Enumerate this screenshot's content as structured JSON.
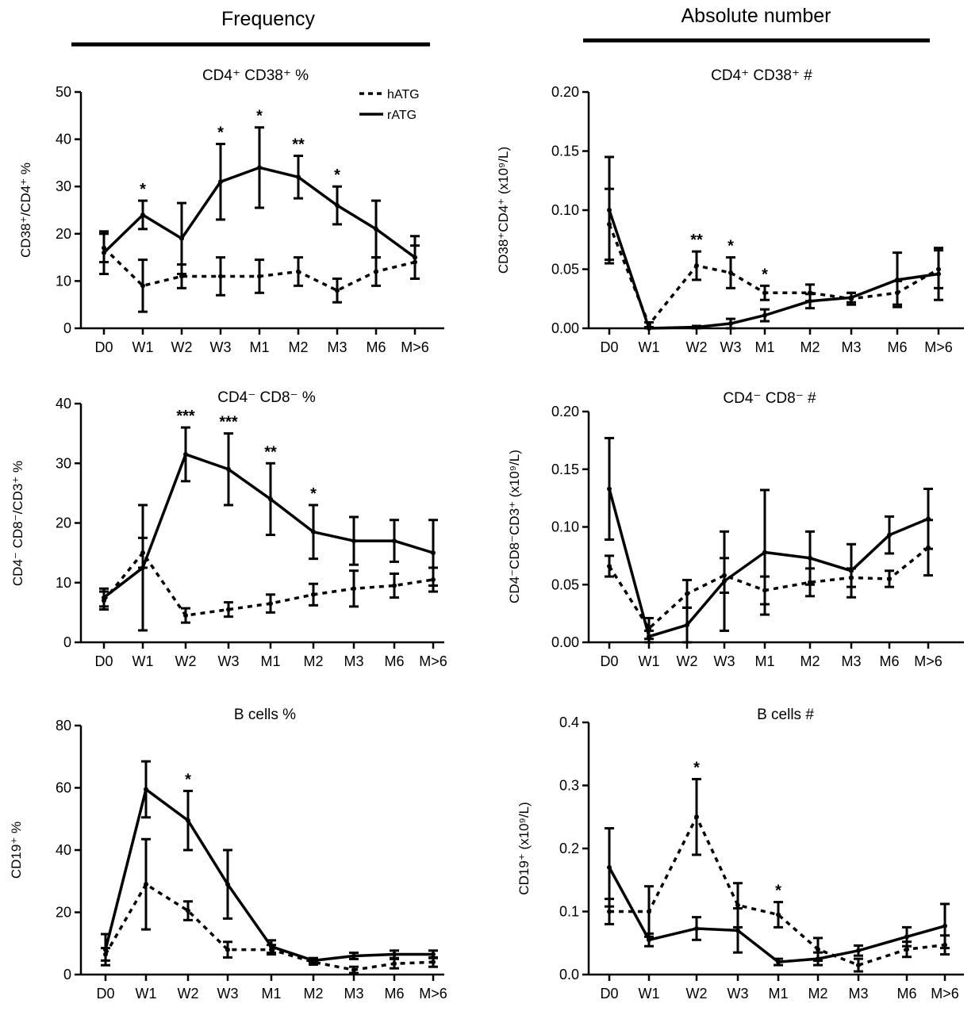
{
  "headers": {
    "left": "Frequency",
    "right": "Absolute number"
  },
  "legend": {
    "dashed": "hATG",
    "solid": "rATG"
  },
  "colors": {
    "line": "#000000",
    "background": "#ffffff"
  },
  "chart_data": [
    {
      "type": "line",
      "id": "cd4-cd38-pct",
      "title": "CD4⁺ CD38⁺ %",
      "ylabel": "CD38⁺/CD4⁺ %",
      "xlabel": "",
      "categories": [
        "D0",
        "W1",
        "W2",
        "W3",
        "M1",
        "M2",
        "M3",
        "M6",
        "M>6"
      ],
      "ylim": [
        0,
        50
      ],
      "yticks": [
        0,
        10,
        20,
        30,
        40,
        50
      ],
      "ytick_labels": [
        "0",
        "10",
        "20",
        "30",
        "40",
        "50"
      ],
      "series": [
        {
          "name": "hATG",
          "style": "dashed",
          "values": [
            17,
            9,
            11,
            11,
            11,
            12,
            8,
            12,
            14
          ],
          "errors": [
            3,
            5.5,
            2.5,
            4,
            3.5,
            3,
            2.5,
            3,
            3.5
          ]
        },
        {
          "name": "rATG",
          "style": "solid",
          "values": [
            16,
            24,
            19,
            31,
            34,
            32,
            26,
            21,
            15
          ],
          "errors": [
            4.5,
            3,
            7.5,
            8,
            8.5,
            4.5,
            4,
            6,
            4.5
          ]
        }
      ],
      "significance": [
        {
          "category": "W1",
          "label": "*"
        },
        {
          "category": "W3",
          "label": "*"
        },
        {
          "category": "M1",
          "label": "*"
        },
        {
          "category": "M2",
          "label": "**"
        },
        {
          "category": "M3",
          "label": "*"
        }
      ]
    },
    {
      "type": "line",
      "id": "cd4-cd38-abs",
      "title": "CD4⁺ CD38⁺ #",
      "ylabel": "CD38⁺CD4⁺ (x10⁹/L)",
      "xlabel": "",
      "categories": [
        "D0",
        "W1",
        "W2",
        "W3",
        "M1",
        "M2",
        "M3",
        "M6",
        "M>6"
      ],
      "ylim": [
        0,
        0.2
      ],
      "yticks": [
        0,
        0.05,
        0.1,
        0.15,
        0.2
      ],
      "ytick_labels": [
        "0.00",
        "0.05",
        "0.10",
        "0.15",
        "0.20"
      ],
      "series": [
        {
          "name": "hATG",
          "style": "dashed",
          "values": [
            0.088,
            0.003,
            0.053,
            0.047,
            0.03,
            0.03,
            0.025,
            0.03,
            0.05
          ],
          "errors": [
            0.03,
            0.002,
            0.012,
            0.013,
            0.006,
            0.007,
            0.005,
            0.01,
            0.016
          ]
        },
        {
          "name": "rATG",
          "style": "solid",
          "values": [
            0.1,
            0.0,
            0.001,
            0.004,
            0.011,
            0.023,
            0.026,
            0.041,
            0.046
          ],
          "errors": [
            0.045,
            0.0,
            0.001,
            0.004,
            0.005,
            0.006,
            0.004,
            0.023,
            0.022
          ]
        }
      ],
      "significance": [
        {
          "category": "W2",
          "label": "**"
        },
        {
          "category": "W3",
          "label": "*"
        },
        {
          "category": "M1",
          "label": "*"
        }
      ]
    },
    {
      "type": "line",
      "id": "cd4-cd8-pct",
      "title": "CD4⁻ CD8⁻ %",
      "ylabel": "CD4⁻ CD8⁻/CD3⁺ %",
      "xlabel": "",
      "categories": [
        "D0",
        "W1",
        "W2",
        "W3",
        "M1",
        "M2",
        "M3",
        "M6",
        "M>6"
      ],
      "ylim": [
        0,
        40
      ],
      "yticks": [
        0,
        10,
        20,
        30,
        40
      ],
      "ytick_labels": [
        "0",
        "10",
        "20",
        "30",
        "40"
      ],
      "series": [
        {
          "name": "hATG",
          "style": "dashed",
          "values": [
            7,
            15,
            4.5,
            5.5,
            6.5,
            8,
            9,
            9.5,
            10.5
          ],
          "errors": [
            1.5,
            2.5,
            1.2,
            1.2,
            1.5,
            1.8,
            3,
            2,
            2
          ]
        },
        {
          "name": "rATG",
          "style": "solid",
          "values": [
            7.5,
            12.5,
            31.5,
            29,
            24,
            18.5,
            17,
            17,
            15
          ],
          "errors": [
            1.5,
            10.5,
            4.5,
            6,
            6,
            4.5,
            4,
            3.5,
            5.5
          ]
        }
      ],
      "significance": [
        {
          "category": "W2",
          "label": "***"
        },
        {
          "category": "W3",
          "label": "***"
        },
        {
          "category": "M1",
          "label": "**"
        },
        {
          "category": "M2",
          "label": "*"
        }
      ]
    },
    {
      "type": "line",
      "id": "cd4-cd8-abs",
      "title": "CD4⁻ CD8⁻ #",
      "ylabel": "CD4⁻CD8⁻CD3⁺ (x10⁹/L)",
      "xlabel": "",
      "categories": [
        "D0",
        "W1",
        "W2",
        "W3",
        "M1",
        "M2",
        "M3",
        "M6",
        "M>6"
      ],
      "ylim": [
        0,
        0.2
      ],
      "yticks": [
        0,
        0.05,
        0.1,
        0.15,
        0.2
      ],
      "ytick_labels": [
        "0.00",
        "0.05",
        "0.10",
        "0.15",
        "0.20"
      ],
      "series": [
        {
          "name": "hATG",
          "style": "dashed",
          "values": [
            0.066,
            0.012,
            0.042,
            0.058,
            0.045,
            0.052,
            0.056,
            0.055,
            0.082
          ],
          "errors": [
            0.009,
            0.009,
            0.012,
            0.015,
            0.012,
            0.012,
            0.008,
            0.007,
            0.024
          ]
        },
        {
          "name": "rATG",
          "style": "solid",
          "values": [
            0.133,
            0.005,
            0.015,
            0.053,
            0.078,
            0.073,
            0.062,
            0.093,
            0.107
          ],
          "errors": [
            0.044,
            0.005,
            0.015,
            0.043,
            0.054,
            0.023,
            0.023,
            0.016,
            0.026
          ]
        }
      ],
      "significance": []
    },
    {
      "type": "line",
      "id": "b-cells-pct",
      "title": "B cells %",
      "ylabel": "CD19⁺ %",
      "xlabel": "",
      "categories": [
        "D0",
        "W1",
        "W2",
        "W3",
        "M1",
        "M2",
        "M3",
        "M6",
        "M>6"
      ],
      "ylim": [
        0,
        80
      ],
      "yticks": [
        0,
        20,
        40,
        60,
        80
      ],
      "ytick_labels": [
        "0",
        "20",
        "40",
        "60",
        "80"
      ],
      "series": [
        {
          "name": "hATG",
          "style": "dashed",
          "values": [
            6.5,
            29,
            20.5,
            8,
            8,
            4,
            1.5,
            3.5,
            4
          ],
          "errors": [
            2,
            14.5,
            3,
            2.5,
            1.5,
            0.8,
            1,
            1.5,
            1.5
          ]
        },
        {
          "name": "rATG",
          "style": "solid",
          "values": [
            8,
            59.5,
            49.5,
            29,
            9,
            4.5,
            6,
            6.5,
            6.5
          ],
          "errors": [
            5,
            9,
            9.5,
            11,
            2,
            0.8,
            1,
            1.2,
            1.2
          ]
        }
      ],
      "significance": [
        {
          "category": "W2",
          "label": "*"
        }
      ]
    },
    {
      "type": "line",
      "id": "b-cells-abs",
      "title": "B cells #",
      "ylabel": "CD19⁺ (x10⁹/L)",
      "xlabel": "",
      "categories": [
        "D0",
        "W1",
        "W2",
        "W3",
        "M1",
        "M2",
        "M3",
        "M6",
        "M>6"
      ],
      "ylim": [
        0,
        0.4
      ],
      "yticks": [
        0,
        0.1,
        0.2,
        0.3,
        0.4
      ],
      "ytick_labels": [
        "0.0",
        "0.1",
        "0.2",
        "0.3",
        "0.4"
      ],
      "series": [
        {
          "name": "hATG",
          "style": "dashed",
          "values": [
            0.1,
            0.1,
            0.25,
            0.11,
            0.095,
            0.04,
            0.015,
            0.04,
            0.047
          ],
          "errors": [
            0.02,
            0.04,
            0.06,
            0.035,
            0.02,
            0.018,
            0.01,
            0.012,
            0.015
          ]
        },
        {
          "name": "rATG",
          "style": "solid",
          "values": [
            0.17,
            0.055,
            0.073,
            0.07,
            0.02,
            0.025,
            0.038,
            0.06,
            0.077
          ],
          "errors": [
            0.062,
            0.01,
            0.018,
            0.035,
            0.005,
            0.01,
            0.008,
            0.015,
            0.035
          ]
        }
      ],
      "significance": [
        {
          "category": "W2",
          "label": "*"
        },
        {
          "category": "M1",
          "label": "*"
        }
      ]
    }
  ]
}
